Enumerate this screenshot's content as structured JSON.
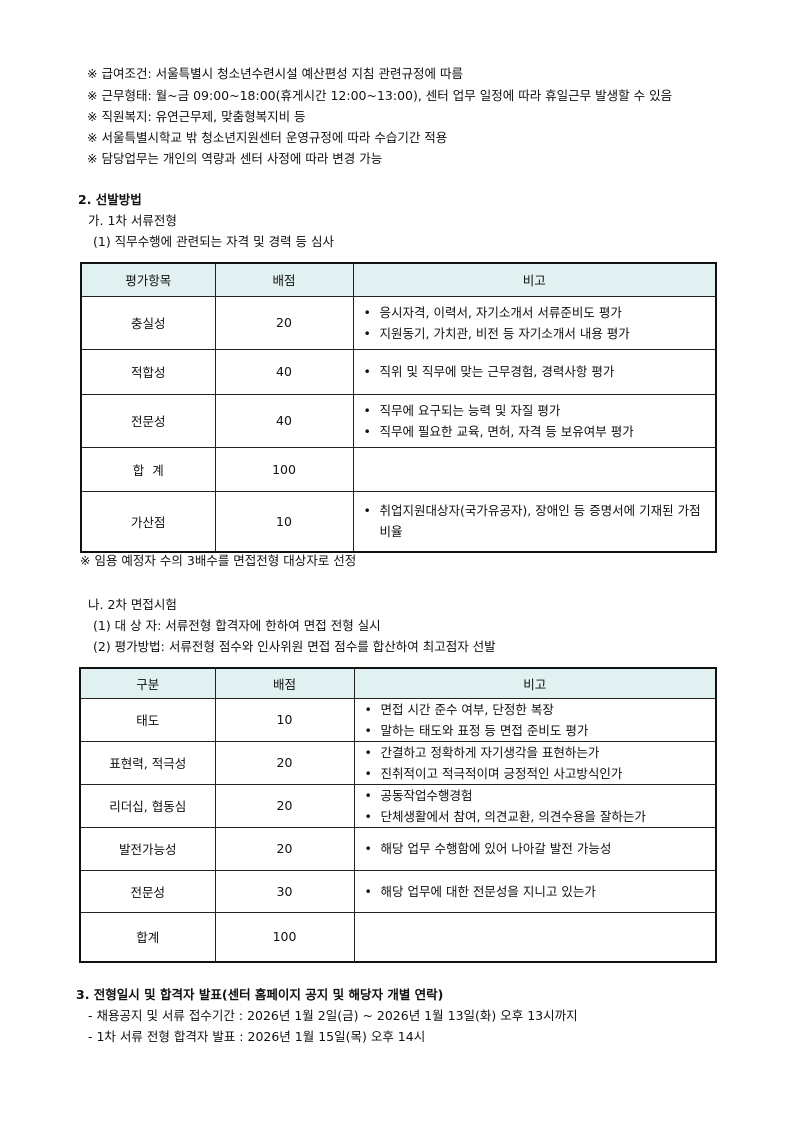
{
  "notes_top": [
    "※ 급여조건: 서울특별시 청소년수련시설 예산편성 지침 관련규정에 따름",
    "※ 근무형태: 월~금 09:00~18:00(휴게시간 12:00~13:00), 센터 업무 일정에 따라 휴일근무 발생할 수 있음",
    "※ 직원복지: 유연근무제, 맞춤형복지비 등",
    "※ 서울특별시학교 밖 청소년지원센터 운영규정에 따라 수습기간 적용",
    "※ 담당업무는 개인의 역량과 센터 사정에 따라 변경 가능"
  ],
  "section2": {
    "title": "2. 선발방법",
    "sub_a": "가. 1차 서류전형",
    "sub_a1": "(1) 직무수행에 관련되는 자격 및 경력 등 심사",
    "table1": {
      "headers": [
        "평가항목",
        "배점",
        "비고"
      ],
      "rows": [
        {
          "item": "충실성",
          "score": "20",
          "remarks": [
            "응시자격, 이력서, 자기소개서 서류준비도 평가",
            "지원동기, 가치관, 비전 등 자기소개서 내용 평가"
          ]
        },
        {
          "item": "적합성",
          "score": "40",
          "remarks": [
            "직위 및 직무에 맞는 근무경험, 경력사항 평가"
          ]
        },
        {
          "item": "전문성",
          "score": "40",
          "remarks": [
            "직무에 요구되는 능력 및 자질 평가",
            "직무에 필요한 교육, 면허, 자격 등 보유여부 평가"
          ]
        },
        {
          "item": "합  계",
          "score": "100",
          "remarks": []
        },
        {
          "item": "가산점",
          "score": "10",
          "remarks": [
            "취업지원대상자(국가유공자), 장애인 등 증명서에 기재된 가점 비율"
          ]
        }
      ]
    },
    "note1": "※ 임용 예정자 수의 3배수를 면접전형 대상자로 선정",
    "sub_b": "나. 2차 면접시험",
    "sub_b1": "(1) 대 상 자: 서류전형 합격자에 한하여 면접 전형 실시",
    "sub_b2": "(2) 평가방법: 서류전형 점수와 인사위원 면접 점수를 합산하여 최고점자 선발",
    "table2": {
      "headers": [
        "구분",
        "배점",
        "비고"
      ],
      "rows": [
        {
          "item": "태도",
          "score": "10",
          "remarks": [
            "면접 시간 준수 여부, 단정한 복장",
            "말하는 태도와 표정 등 면접 준비도 평가"
          ]
        },
        {
          "item": "표현력, 적극성",
          "score": "20",
          "remarks": [
            "간결하고 정확하게 자기생각을 표현하는가",
            "진취적이고 적극적이며 긍정적인 사고방식인가"
          ]
        },
        {
          "item": "리더십, 협동심",
          "score": "20",
          "remarks": [
            "공동작업수행경험",
            "단체생활에서 참여, 의견교환, 의견수용을 잘하는가"
          ]
        },
        {
          "item": "발전가능성",
          "score": "20",
          "remarks": [
            "해당 업무 수행함에 있어 나아갈 발전 가능성"
          ]
        },
        {
          "item": "전문성",
          "score": "30",
          "remarks": [
            "해당 업무에 대한 전문성을 지니고 있는가"
          ]
        },
        {
          "item": "합계",
          "score": "100",
          "remarks": []
        }
      ]
    }
  },
  "section3": {
    "title": "3. 전형일시 및 합격자 발표(센터 홈페이지 공지 및 해당자 개별 연락)",
    "items": [
      "- 채용공지 및 서류 접수기간 : 2026년 1월 2일(금) ~ 2026년 1월 13일(화) 오후 13시까지",
      "- 1차 서류 전형 합격자 발표 : 2026년 1월 15일(목) 오후 14시"
    ]
  }
}
